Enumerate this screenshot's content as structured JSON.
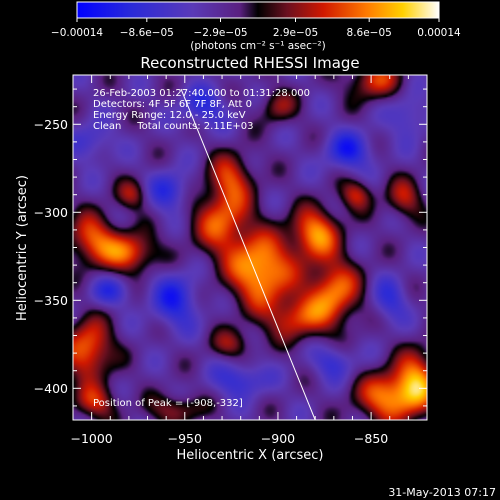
{
  "chart_data": {
    "type": "heatmap",
    "title": "Reconstructed RHESSI Image",
    "xlabel": "Heliocentric X (arcsec)",
    "ylabel": "Heliocentric Y (arcsec)",
    "xlim": [
      -1010,
      -820
    ],
    "ylim": [
      -418,
      -222
    ],
    "x_ticks": [
      {
        "value": -1000,
        "label": "−1000"
      },
      {
        "value": -950,
        "label": "−950"
      },
      {
        "value": -900,
        "label": "−900"
      },
      {
        "value": -850,
        "label": "−850"
      }
    ],
    "y_ticks": [
      {
        "value": -250,
        "label": "−250"
      },
      {
        "value": -300,
        "label": "−300"
      },
      {
        "value": -350,
        "label": "−350"
      },
      {
        "value": -400,
        "label": "−400"
      }
    ],
    "colorbar": {
      "range": [
        -0.00014,
        0.00014
      ],
      "ticks": [
        {
          "value": -0.00014,
          "label": "−0.00014"
        },
        {
          "value": -8.6e-05,
          "label": "−8.6e−05"
        },
        {
          "value": -2.9e-05,
          "label": "−2.9e−05"
        },
        {
          "value": 2.9e-05,
          "label": "2.9e−05"
        },
        {
          "value": 8.6e-05,
          "label": "8.6e−05"
        },
        {
          "value": 0.00014,
          "label": "0.00014"
        }
      ],
      "unit_label": "(photons cm⁻² s⁻¹ asec⁻²)"
    },
    "annotations": [
      "26-Feb-2003 01:27:40.000 to 01:31:28.000",
      "Detectors: 4F 5F 6F 7F 8F, Att 0",
      "Energy Range: 12.0 - 25.0 keV",
      "Clean     Total counts: 2.11E+03"
    ],
    "peak_label": "Position of Peak = [-908,-332]",
    "peak": {
      "x": -908,
      "y": -332
    },
    "limb_line": [
      [
        -952,
        -230
      ],
      [
        -880,
        -418
      ]
    ],
    "blobs": [
      {
        "x": -909,
        "y": -333,
        "sx": 12,
        "sy": 14,
        "a": 1.0
      },
      {
        "x": -930,
        "y": -305,
        "sx": 11,
        "sy": 14,
        "a": 0.7
      },
      {
        "x": -925,
        "y": -280,
        "sx": 8,
        "sy": 10,
        "a": 0.55
      },
      {
        "x": -880,
        "y": -312,
        "sx": 9,
        "sy": 10,
        "a": 0.85
      },
      {
        "x": -870,
        "y": -345,
        "sx": 10,
        "sy": 13,
        "a": 0.8
      },
      {
        "x": -890,
        "y": -360,
        "sx": 12,
        "sy": 9,
        "a": 0.6
      },
      {
        "x": -980,
        "y": -323,
        "sx": 10,
        "sy": 8,
        "a": 0.75
      },
      {
        "x": -1000,
        "y": -315,
        "sx": 9,
        "sy": 10,
        "a": 0.7
      },
      {
        "x": -978,
        "y": -290,
        "sx": 6,
        "sy": 6,
        "a": 0.45
      },
      {
        "x": -1002,
        "y": -378,
        "sx": 9,
        "sy": 12,
        "a": 0.8
      },
      {
        "x": -998,
        "y": -408,
        "sx": 8,
        "sy": 7,
        "a": 0.55
      },
      {
        "x": -840,
        "y": -405,
        "sx": 12,
        "sy": 10,
        "a": 0.85
      },
      {
        "x": -825,
        "y": -395,
        "sx": 8,
        "sy": 12,
        "a": 0.75
      },
      {
        "x": -848,
        "y": -225,
        "sx": 10,
        "sy": 8,
        "a": 0.6
      },
      {
        "x": -832,
        "y": -292,
        "sx": 7,
        "sy": 8,
        "a": 0.5
      },
      {
        "x": -858,
        "y": -290,
        "sx": 6,
        "sy": 6,
        "a": 0.55
      },
      {
        "x": -925,
        "y": -375,
        "sx": 8,
        "sy": 6,
        "a": 0.4
      },
      {
        "x": -955,
        "y": -412,
        "sx": 10,
        "sy": 6,
        "a": 0.45
      },
      {
        "x": -900,
        "y": -240,
        "sx": 7,
        "sy": 7,
        "a": 0.4
      },
      {
        "x": -955,
        "y": -350,
        "sx": 9,
        "sy": 11,
        "a": -0.55
      },
      {
        "x": -958,
        "y": -288,
        "sx": 8,
        "sy": 8,
        "a": -0.5
      },
      {
        "x": -940,
        "y": -240,
        "sx": 9,
        "sy": 8,
        "a": -0.45
      },
      {
        "x": -862,
        "y": -265,
        "sx": 9,
        "sy": 8,
        "a": -0.55
      },
      {
        "x": -840,
        "y": -350,
        "sx": 7,
        "sy": 9,
        "a": -0.4
      },
      {
        "x": -990,
        "y": -345,
        "sx": 8,
        "sy": 6,
        "a": -0.4
      },
      {
        "x": -920,
        "y": -395,
        "sx": 10,
        "sy": 7,
        "a": -0.45
      },
      {
        "x": -870,
        "y": -385,
        "sx": 8,
        "sy": 7,
        "a": -0.4
      },
      {
        "x": -1000,
        "y": -260,
        "sx": 8,
        "sy": 8,
        "a": -0.35
      },
      {
        "x": -830,
        "y": -245,
        "sx": 7,
        "sy": 9,
        "a": -0.35
      }
    ]
  },
  "footer": {
    "timestamp": "31-May-2013 07:17"
  },
  "colors": {
    "background": "#000000",
    "axis": "#ffffff",
    "limb_line": "#ffffff"
  }
}
